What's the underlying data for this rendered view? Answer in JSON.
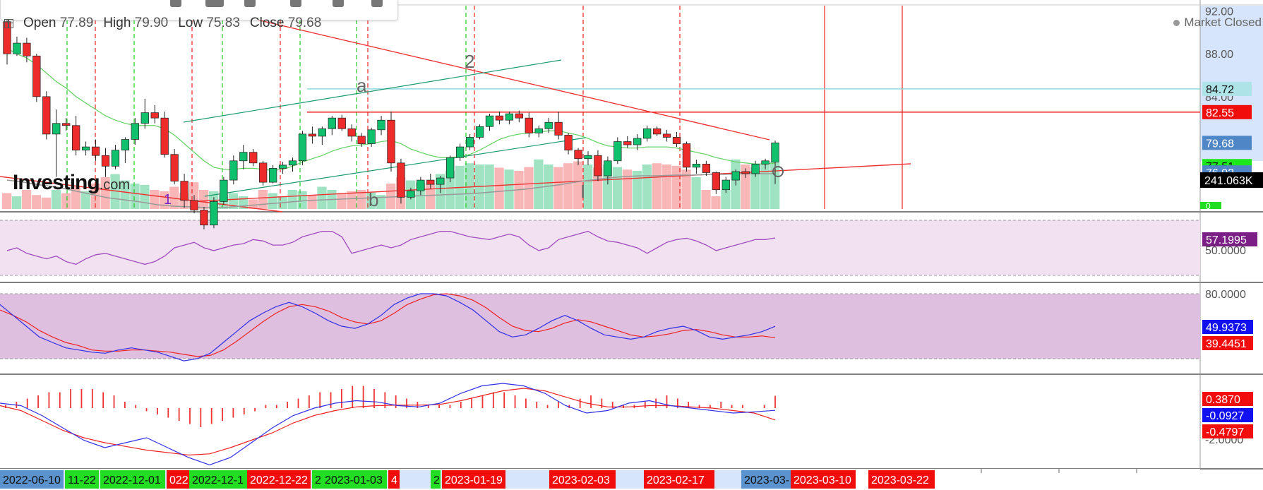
{
  "header": {
    "ohlc": {
      "open_label": "Open",
      "open": "77.89",
      "high_label": "High",
      "high": "79.90",
      "low_label": "Low",
      "low": "75.83",
      "close_label": "Close",
      "close": "79.68"
    },
    "market_status": "Market Closed",
    "logo": "Investing",
    "logo_domain": ".com"
  },
  "wave_labels": {
    "w1": "1",
    "w2": "2",
    "wa": "a",
    "wb": "b",
    "wI": "I"
  },
  "price_axis": {
    "ticks": [
      "92.00",
      "88.00",
      "84.00",
      "80.00",
      "76.00"
    ],
    "badges": [
      {
        "text": "84.72",
        "bg": "#aee3e8",
        "fg": "#111",
        "value": 84.72
      },
      {
        "text": "82.55",
        "bg": "#f20d0d",
        "fg": "#ffffff",
        "value": 82.55
      },
      {
        "text": "79.68",
        "bg": "#4f86c6",
        "fg": "#ffffff",
        "value": 79.68
      },
      {
        "text": "77.51",
        "bg": "#1ce61c",
        "fg": "#111",
        "value": 77.51
      },
      {
        "text": "76.92",
        "bg": "#4f86c6",
        "fg": "#ffffff",
        "value": 76.92
      }
    ],
    "volume_badge": {
      "text": "241.063K",
      "bg": "#000000",
      "fg": "#ffffff"
    },
    "volume_zero": "0"
  },
  "rsi_panel": {
    "tick": "50.0000",
    "badge": {
      "text": "57.1995",
      "bg": "#7b1f86",
      "fg": "#ffffff"
    }
  },
  "stoch_panel": {
    "tick": "80.0000",
    "badges": [
      {
        "text": "49.9373",
        "bg": "#1010f0",
        "fg": "#ffffff"
      },
      {
        "text": "39.4451",
        "bg": "#f20d0d",
        "fg": "#ffffff"
      }
    ]
  },
  "macd_panel": {
    "tick": "-2.0000",
    "badges": [
      {
        "text": "0.3870",
        "bg": "#f20d0d",
        "fg": "#ffffff"
      },
      {
        "text": "-0.0927",
        "bg": "#1010f0",
        "fg": "#ffffff"
      },
      {
        "text": "-0.4797",
        "bg": "#f20d0d",
        "fg": "#ffffff"
      }
    ]
  },
  "time_axis": {
    "labels": [
      {
        "text": "2022-06-10",
        "bg": "#5b93cf",
        "fg": "#111"
      },
      {
        "text": "11-22",
        "bg": "#22dd22",
        "fg": "#111"
      },
      {
        "text": "2022-12-01",
        "bg": "#22dd22",
        "fg": "#111"
      },
      {
        "text": "022",
        "bg": "#f20d0d",
        "fg": "#ffffff"
      },
      {
        "text": "2022-12-1",
        "bg": "#22dd22",
        "fg": "#111"
      },
      {
        "text": "2022-12-22",
        "bg": "#f20d0d",
        "fg": "#ffffff"
      },
      {
        "text": "2",
        "bg": "#22dd22",
        "fg": "#111"
      },
      {
        "text": "2023-01-03",
        "bg": "#22dd22",
        "fg": "#111"
      },
      {
        "text": "4",
        "bg": "#f20d0d",
        "fg": "#ffffff"
      },
      {
        "text": "2",
        "bg": "#22dd22",
        "fg": "#111"
      },
      {
        "text": "2023-01-19",
        "bg": "#f20d0d",
        "fg": "#ffffff"
      },
      {
        "text": "2023-02-03",
        "bg": "#f20d0d",
        "fg": "#ffffff"
      },
      {
        "text": "2023-02-17",
        "bg": "#f20d0d",
        "fg": "#ffffff"
      },
      {
        "text": "2023-03-",
        "bg": "#5b93cf",
        "fg": "#111"
      },
      {
        "text": "2023-03-10",
        "bg": "#f20d0d",
        "fg": "#ffffff"
      },
      {
        "text": "2023-03-22",
        "bg": "#f20d0d",
        "fg": "#ffffff"
      }
    ]
  },
  "chart_data": {
    "type": "candlestick",
    "price_ylim": [
      73.5,
      92.5
    ],
    "candles": [
      {
        "o": 91.0,
        "h": 91.5,
        "l": 87.0,
        "c": 88.0
      },
      {
        "o": 88.0,
        "h": 89.6,
        "l": 87.8,
        "c": 89.0
      },
      {
        "o": 89.0,
        "h": 89.5,
        "l": 87.2,
        "c": 87.8
      },
      {
        "o": 87.8,
        "h": 88.0,
        "l": 83.5,
        "c": 84.0
      },
      {
        "o": 84.0,
        "h": 84.5,
        "l": 80.0,
        "c": 80.5
      },
      {
        "o": 80.5,
        "h": 82.8,
        "l": 76.5,
        "c": 81.5
      },
      {
        "o": 81.5,
        "h": 82.0,
        "l": 80.8,
        "c": 81.3
      },
      {
        "o": 81.3,
        "h": 82.2,
        "l": 78.5,
        "c": 79.0
      },
      {
        "o": 79.0,
        "h": 79.8,
        "l": 78.5,
        "c": 79.3
      },
      {
        "o": 79.3,
        "h": 80.0,
        "l": 78.0,
        "c": 78.5
      },
      {
        "o": 78.5,
        "h": 79.2,
        "l": 76.5,
        "c": 77.5
      },
      {
        "o": 77.5,
        "h": 79.5,
        "l": 77.2,
        "c": 79.0
      },
      {
        "o": 79.0,
        "h": 80.2,
        "l": 77.8,
        "c": 80.0
      },
      {
        "o": 80.0,
        "h": 82.0,
        "l": 79.5,
        "c": 81.5
      },
      {
        "o": 81.5,
        "h": 83.8,
        "l": 81.0,
        "c": 82.5
      },
      {
        "o": 82.5,
        "h": 83.2,
        "l": 81.5,
        "c": 82.0
      },
      {
        "o": 82.0,
        "h": 82.6,
        "l": 78.3,
        "c": 78.6
      },
      {
        "o": 78.6,
        "h": 79.1,
        "l": 75.8,
        "c": 76.1
      },
      {
        "o": 76.1,
        "h": 76.8,
        "l": 73.6,
        "c": 74.3
      },
      {
        "o": 74.3,
        "h": 74.8,
        "l": 73.1,
        "c": 73.4
      },
      {
        "o": 73.4,
        "h": 73.7,
        "l": 71.6,
        "c": 72.0
      },
      {
        "o": 72.0,
        "h": 74.6,
        "l": 71.7,
        "c": 74.2
      },
      {
        "o": 74.2,
        "h": 76.5,
        "l": 73.9,
        "c": 76.2
      },
      {
        "o": 76.2,
        "h": 78.5,
        "l": 75.8,
        "c": 78.0
      },
      {
        "o": 78.0,
        "h": 79.5,
        "l": 77.2,
        "c": 78.8
      },
      {
        "o": 78.8,
        "h": 79.1,
        "l": 77.5,
        "c": 77.8
      },
      {
        "o": 77.8,
        "h": 78.0,
        "l": 75.7,
        "c": 76.0
      },
      {
        "o": 76.0,
        "h": 77.6,
        "l": 75.9,
        "c": 77.3
      },
      {
        "o": 77.3,
        "h": 77.9,
        "l": 76.8,
        "c": 77.6
      },
      {
        "o": 77.6,
        "h": 78.3,
        "l": 77.0,
        "c": 78.0
      },
      {
        "o": 78.0,
        "h": 80.8,
        "l": 77.6,
        "c": 80.5
      },
      {
        "o": 80.5,
        "h": 81.2,
        "l": 79.6,
        "c": 80.3
      },
      {
        "o": 80.3,
        "h": 81.2,
        "l": 79.5,
        "c": 81.0
      },
      {
        "o": 81.0,
        "h": 82.2,
        "l": 80.4,
        "c": 82.0
      },
      {
        "o": 82.0,
        "h": 82.3,
        "l": 80.8,
        "c": 81.0
      },
      {
        "o": 81.0,
        "h": 81.4,
        "l": 79.8,
        "c": 80.3
      },
      {
        "o": 80.3,
        "h": 80.6,
        "l": 79.3,
        "c": 79.6
      },
      {
        "o": 79.6,
        "h": 81.1,
        "l": 79.3,
        "c": 80.9
      },
      {
        "o": 80.9,
        "h": 82.2,
        "l": 80.4,
        "c": 81.8
      },
      {
        "o": 81.8,
        "h": 82.6,
        "l": 77.0,
        "c": 77.8
      },
      {
        "o": 77.8,
        "h": 78.2,
        "l": 74.0,
        "c": 74.6
      },
      {
        "o": 74.6,
        "h": 75.5,
        "l": 74.4,
        "c": 75.2
      },
      {
        "o": 75.2,
        "h": 76.5,
        "l": 74.8,
        "c": 76.2
      },
      {
        "o": 76.2,
        "h": 76.8,
        "l": 75.4,
        "c": 75.8
      },
      {
        "o": 75.8,
        "h": 76.6,
        "l": 75.0,
        "c": 76.4
      },
      {
        "o": 76.4,
        "h": 78.5,
        "l": 76.0,
        "c": 78.3
      },
      {
        "o": 78.3,
        "h": 79.6,
        "l": 78.0,
        "c": 79.3
      },
      {
        "o": 79.3,
        "h": 80.5,
        "l": 79.0,
        "c": 80.2
      },
      {
        "o": 80.2,
        "h": 81.4,
        "l": 80.0,
        "c": 81.2
      },
      {
        "o": 81.2,
        "h": 82.4,
        "l": 80.8,
        "c": 82.2
      },
      {
        "o": 82.2,
        "h": 82.6,
        "l": 81.4,
        "c": 81.8
      },
      {
        "o": 81.8,
        "h": 82.6,
        "l": 81.4,
        "c": 82.4
      },
      {
        "o": 82.4,
        "h": 82.7,
        "l": 81.6,
        "c": 82.0
      },
      {
        "o": 82.0,
        "h": 82.5,
        "l": 80.2,
        "c": 80.6
      },
      {
        "o": 80.6,
        "h": 81.3,
        "l": 80.2,
        "c": 81.0
      },
      {
        "o": 81.0,
        "h": 82.0,
        "l": 80.6,
        "c": 81.6
      },
      {
        "o": 81.6,
        "h": 82.6,
        "l": 80.0,
        "c": 80.4
      },
      {
        "o": 80.4,
        "h": 80.6,
        "l": 78.6,
        "c": 79.0
      },
      {
        "o": 79.0,
        "h": 79.2,
        "l": 77.6,
        "c": 78.2
      },
      {
        "o": 78.2,
        "h": 78.9,
        "l": 77.6,
        "c": 78.5
      },
      {
        "o": 78.5,
        "h": 79.0,
        "l": 76.1,
        "c": 76.6
      },
      {
        "o": 76.6,
        "h": 78.4,
        "l": 75.8,
        "c": 78.0
      },
      {
        "o": 78.0,
        "h": 80.2,
        "l": 77.7,
        "c": 79.8
      },
      {
        "o": 79.8,
        "h": 80.3,
        "l": 79.2,
        "c": 79.5
      },
      {
        "o": 79.5,
        "h": 80.5,
        "l": 79.0,
        "c": 80.1
      },
      {
        "o": 80.1,
        "h": 81.3,
        "l": 79.8,
        "c": 81.0
      },
      {
        "o": 81.0,
        "h": 81.2,
        "l": 80.3,
        "c": 80.5
      },
      {
        "o": 80.5,
        "h": 80.9,
        "l": 79.8,
        "c": 80.2
      },
      {
        "o": 80.2,
        "h": 80.7,
        "l": 79.3,
        "c": 79.6
      },
      {
        "o": 79.6,
        "h": 79.8,
        "l": 77.0,
        "c": 77.4
      },
      {
        "o": 77.4,
        "h": 78.1,
        "l": 76.8,
        "c": 77.7
      },
      {
        "o": 77.7,
        "h": 78.0,
        "l": 76.6,
        "c": 76.9
      },
      {
        "o": 76.9,
        "h": 77.0,
        "l": 74.9,
        "c": 75.3
      },
      {
        "o": 75.3,
        "h": 76.5,
        "l": 75.0,
        "c": 76.2
      },
      {
        "o": 76.2,
        "h": 77.2,
        "l": 75.7,
        "c": 77.0
      },
      {
        "o": 77.0,
        "h": 77.3,
        "l": 76.4,
        "c": 76.8
      },
      {
        "o": 76.8,
        "h": 78.0,
        "l": 76.5,
        "c": 77.7
      },
      {
        "o": 77.7,
        "h": 78.2,
        "l": 77.2,
        "c": 78.0
      },
      {
        "o": 77.89,
        "h": 79.9,
        "l": 75.83,
        "c": 79.68
      }
    ],
    "ma_fast": [
      88.5,
      88.0,
      87.6,
      87.0,
      86.2,
      85.4,
      84.8,
      84.0,
      83.4,
      82.8,
      82.2,
      81.8,
      81.5,
      81.3,
      81.3,
      81.3,
      81.0,
      80.4,
      79.6,
      78.8,
      78.0,
      77.4,
      77.2,
      77.2,
      77.3,
      77.3,
      77.2,
      77.1,
      77.2,
      77.5,
      77.9,
      78.2,
      78.5,
      78.9,
      79.2,
      79.4,
      79.5,
      79.6,
      79.8,
      79.9,
      79.6,
      79.1,
      78.8,
      78.5,
      78.3,
      78.3,
      78.4,
      78.6,
      79.0,
      79.5,
      80.0,
      80.3,
      80.5,
      80.6,
      80.7,
      80.8,
      80.8,
      80.6,
      80.4,
      80.1,
      79.7,
      79.4,
      79.3,
      79.2,
      79.2,
      79.3,
      79.3,
      79.3,
      79.2,
      79.0,
      78.8,
      78.6,
      78.3,
      78.1,
      77.9,
      77.8,
      77.7,
      77.7,
      77.8
    ],
    "levels": [
      {
        "value": 84.72,
        "color": "#88d5dc"
      },
      {
        "value": 82.55,
        "color": "#f20d0d"
      }
    ],
    "volume": [
      0.25,
      0.2,
      0.3,
      0.22,
      0.18,
      0.3,
      0.25,
      0.35,
      0.28,
      0.4,
      0.5,
      0.55,
      0.45,
      0.4,
      0.38,
      0.3,
      0.28,
      0.35,
      0.25,
      0.42,
      0.3,
      0.28,
      0.22,
      0.25,
      0.2,
      0.15,
      0.3,
      0.25,
      0.2,
      0.3,
      0.28,
      0.22,
      0.35,
      0.3,
      0.25,
      0.28,
      0.3,
      0.26,
      0.22,
      0.4,
      0.5,
      0.45,
      0.42,
      0.4,
      0.55,
      0.6,
      0.68,
      0.72,
      0.7,
      0.7,
      0.65,
      0.62,
      0.6,
      0.66,
      0.78,
      0.7,
      0.66,
      0.72,
      0.75,
      0.7,
      0.65,
      0.7,
      0.66,
      0.62,
      0.6,
      0.7,
      0.72,
      0.7,
      0.68,
      0.62,
      0.5,
      0.3,
      0.2,
      0.3,
      0.78,
      0.7,
      0.66,
      0.72,
      0.74
    ],
    "rsi": [
      48,
      50,
      46,
      44,
      42,
      44,
      40,
      38,
      42,
      45,
      46,
      44,
      42,
      40,
      38,
      40,
      44,
      50,
      52,
      54,
      50,
      48,
      50,
      52,
      53,
      56,
      55,
      52,
      52,
      54,
      58,
      60,
      62,
      62,
      58,
      46,
      48,
      50,
      52,
      50,
      52,
      56,
      58,
      60,
      62,
      62,
      60,
      58,
      57,
      56,
      58,
      60,
      58,
      52,
      48,
      50,
      56,
      58,
      60,
      62,
      58,
      55,
      54,
      52,
      50,
      46,
      50,
      54,
      56,
      57,
      55,
      52,
      48,
      50,
      52,
      54,
      56,
      56,
      57.2
    ],
    "stoch_k": [
      70,
      60,
      50,
      40,
      35,
      30,
      28,
      26,
      25,
      28,
      30,
      28,
      26,
      22,
      18,
      20,
      25,
      35,
      45,
      55,
      62,
      68,
      72,
      68,
      62,
      55,
      50,
      48,
      52,
      60,
      70,
      76,
      80,
      80,
      78,
      72,
      65,
      55,
      45,
      40,
      42,
      48,
      55,
      60,
      55,
      48,
      42,
      40,
      38,
      40,
      45,
      48,
      50,
      46,
      40,
      38,
      40,
      42,
      45,
      49.9
    ],
    "stoch_d": [
      65,
      60,
      54,
      46,
      40,
      35,
      32,
      28,
      27,
      27,
      28,
      28,
      27,
      26,
      24,
      22,
      23,
      28,
      36,
      45,
      54,
      62,
      68,
      70,
      68,
      64,
      58,
      54,
      52,
      55,
      62,
      70,
      75,
      79,
      80,
      78,
      74,
      67,
      58,
      50,
      46,
      45,
      48,
      53,
      56,
      54,
      50,
      46,
      42,
      40,
      41,
      43,
      46,
      47,
      45,
      42,
      40,
      40,
      41,
      39.4
    ],
    "macd_line": [
      0.2,
      0.1,
      -0.3,
      -0.8,
      -1.3,
      -1.6,
      -1.4,
      -1.2,
      -1.6,
      -2.0,
      -2.3,
      -2.0,
      -1.4,
      -0.8,
      -0.3,
      0.0,
      0.2,
      0.3,
      0.25,
      0.1,
      0.05,
      0.2,
      0.6,
      0.9,
      1.0,
      0.9,
      0.6,
      0.1,
      -0.2,
      -0.1,
      0.2,
      0.3,
      0.1,
      0.0,
      -0.1,
      -0.2,
      -0.15,
      -0.0927
    ],
    "macd_signal": [
      0.1,
      -0.1,
      -0.5,
      -0.9,
      -1.2,
      -1.4,
      -1.55,
      -1.7,
      -1.8,
      -1.9,
      -1.85,
      -1.6,
      -1.3,
      -1.0,
      -0.6,
      -0.3,
      -0.1,
      0.05,
      0.1,
      0.12,
      0.12,
      0.15,
      0.3,
      0.5,
      0.7,
      0.8,
      0.7,
      0.45,
      0.2,
      0.05,
      0.05,
      0.1,
      0.1,
      0.05,
      0.0,
      -0.1,
      -0.2,
      -0.4797
    ],
    "macd_hist": [
      0.1,
      0.2,
      0.3,
      0.4,
      0.5,
      0.5,
      0.6,
      0.6,
      0.6,
      0.5,
      0.4,
      0.2,
      0.1,
      -0.1,
      -0.2,
      -0.3,
      -0.4,
      -0.5,
      -0.6,
      -0.5,
      -0.4,
      -0.3,
      -0.2,
      -0.1,
      0.1,
      0.1,
      0.2,
      0.3,
      0.4,
      0.5,
      0.5,
      0.6,
      0.7,
      0.7,
      0.6,
      0.5,
      0.4,
      0.3,
      0.2,
      0.1,
      0.1,
      0.1,
      0.2,
      0.3,
      0.4,
      0.5,
      0.5,
      0.4,
      0.3,
      0.2,
      0.1,
      0.2,
      0.1,
      0.3,
      0.4,
      0.3,
      0.2,
      0.1,
      0.1,
      0.2,
      0.3,
      0.4,
      0.3,
      0.2,
      0.1,
      0.1,
      0.2,
      0.1,
      0.1,
      0.0,
      0.1,
      0.387
    ]
  }
}
